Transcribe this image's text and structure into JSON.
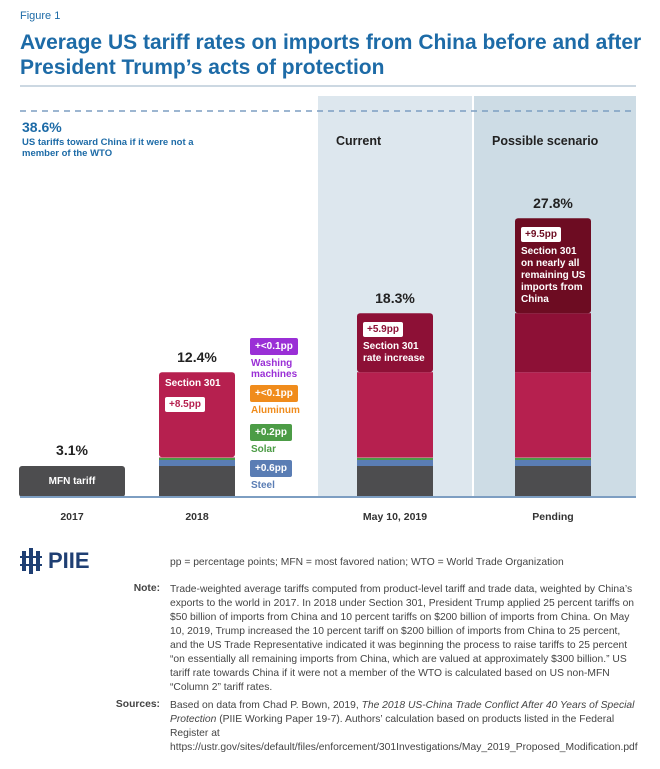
{
  "figure_label": "Figure 1",
  "chart_data": {
    "type": "stacked-bar",
    "title": "Average US tariff rates on imports from China before and after President Trump’s acts of protection",
    "categories": [
      "2017",
      "2018",
      "May 10, 2019",
      "Pending"
    ],
    "panel_labels": [
      "Current",
      "Possible scenario"
    ],
    "series": [
      {
        "name": "MFN tariff",
        "color": "#4d4d4f",
        "values": [
          3.1,
          3.1,
          3.1,
          3.1
        ]
      },
      {
        "name": "Steel",
        "color": "#5a7db4",
        "values": [
          null,
          0.6,
          0.6,
          0.6
        ],
        "value_labels": [
          null,
          "+0.6pp",
          null,
          null
        ]
      },
      {
        "name": "Solar",
        "color": "#4c9c46",
        "values": [
          null,
          0.2,
          0.2,
          0.2
        ],
        "value_labels": [
          null,
          "+0.2pp",
          null,
          null
        ]
      },
      {
        "name": "Aluminum",
        "color": "#f08c1c",
        "values": [
          null,
          0.04,
          0.04,
          0.04
        ],
        "value_labels": [
          null,
          "+<0.1pp",
          null,
          null
        ]
      },
      {
        "name": "Washing machines",
        "color": "#9a2fd6",
        "values": [
          null,
          0.04,
          0.04,
          0.04
        ],
        "value_labels": [
          null,
          "+<0.1pp",
          null,
          null
        ]
      },
      {
        "name": "Section 301",
        "color": "#b6204f",
        "values": [
          null,
          8.5,
          8.5,
          8.5
        ],
        "value_labels": [
          null,
          "+8.5pp",
          null,
          null
        ]
      },
      {
        "name": "Section 301 rate increase",
        "color": "#8d1036",
        "values": [
          null,
          null,
          5.9,
          5.9
        ],
        "value_labels": [
          null,
          null,
          "+5.9pp",
          null
        ]
      },
      {
        "name": "Section 301 on nearly all remaining US imports from China",
        "color": "#6d0c22",
        "values": [
          null,
          null,
          null,
          9.5
        ],
        "value_labels": [
          null,
          null,
          null,
          "+9.5pp"
        ]
      }
    ],
    "totals": [
      3.1,
      12.4,
      18.3,
      27.8
    ],
    "totals_labels": [
      "3.1%",
      "12.4%",
      "18.3%",
      "27.8%"
    ],
    "reference": {
      "value": 38.6,
      "value_label": "38.6%",
      "label": "US tariffs toward China if it were not a member of the WTO"
    }
  },
  "footer": {
    "logo": "PIIE",
    "abbreviations": "pp = percentage points; MFN = most favored nation; WTO = World Trade Organization",
    "note_heading": "Note:",
    "note": "Trade-weighted average tariffs computed from product-level tariff and trade data, weighted by China’s exports to the world in 2017. In 2018 under Section 301, President Trump applied 25 percent tariffs on $50 billion of imports from China and 10 percent tariffs on $200 billion of imports from China. On May 10, 2019, Trump increased the 10 percent tariff on $200 billion of imports from China to 25 percent, and the US Trade Representative indicated it was beginning the process to raise tariffs to 25 percent “on essentially all remaining imports from China, which are valued at approximately $300 billion.” US tariff rate towards China if it were not a member of the WTO is calculated based on US non-MFN “Column 2” tariff rates.",
    "sources_heading": "Sources:",
    "sources": [
      "Based on data from Chad P. Bown, 2019, ",
      "The 2018 US-China Trade Conflict After 40 Years of Special Protection",
      " (PIIE Working Paper 19-7). Authors’ calculation based on products listed in the Federal Register at https://ustr.gov/sites/default/files/enforcement/301Investigations/May_2019_Proposed_Modification.pdf"
    ]
  }
}
